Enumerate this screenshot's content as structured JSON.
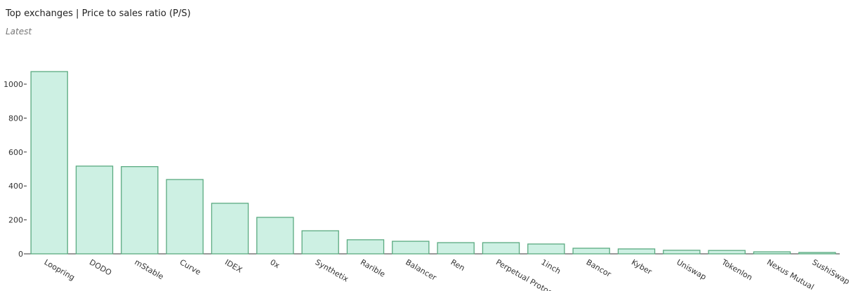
{
  "chart_data": {
    "type": "bar",
    "title": "Top exchanges | Price to sales ratio (P/S)",
    "subtitle": "Latest",
    "categories": [
      "Loopring",
      "DODO",
      "mStable",
      "Curve",
      "IDEX",
      "0x",
      "Synthetix",
      "Rarible",
      "Balancer",
      "Ren",
      "Perpetual Protocol",
      "1inch",
      "Bancor",
      "Kyber",
      "Uniswap",
      "Tokenlon",
      "Nexus Mutual",
      "SushiSwap"
    ],
    "values": [
      1074,
      517,
      514,
      438,
      298,
      215,
      136,
      83,
      74,
      66,
      66,
      58,
      33,
      29,
      21,
      20,
      12,
      8
    ],
    "color": "#cdf0e3",
    "ylim": [
      0,
      1100
    ],
    "yticks": [
      0,
      200,
      400,
      600,
      800,
      1000
    ],
    "grid": false
  }
}
